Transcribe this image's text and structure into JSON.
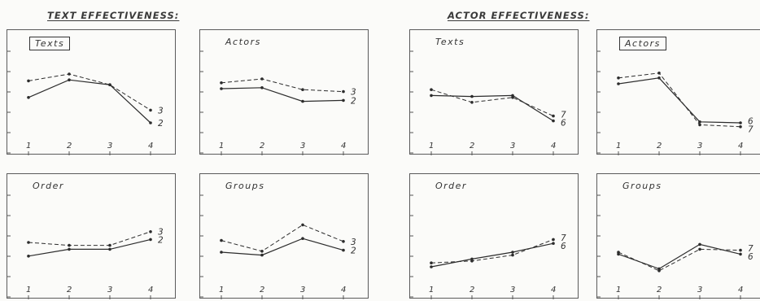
{
  "headings": {
    "left": "TEXT EFFECTIVENESS:",
    "right": "ACTOR EFFECTIVENESS:"
  },
  "chart_data": [
    {
      "type": "line",
      "title": "Texts",
      "title_boxed": true,
      "categories": [
        "1",
        "2",
        "3",
        "4"
      ],
      "ylim": [
        0,
        100
      ],
      "series": [
        {
          "name": "2",
          "style": "solid",
          "values": [
            46,
            64,
            59,
            20
          ]
        },
        {
          "name": "3",
          "style": "dashed",
          "values": [
            63,
            70,
            59,
            33
          ]
        }
      ]
    },
    {
      "type": "line",
      "title": "Actors",
      "title_boxed": false,
      "categories": [
        "1",
        "2",
        "3",
        "4"
      ],
      "ylim": [
        0,
        100
      ],
      "series": [
        {
          "name": "2",
          "style": "solid",
          "values": [
            55,
            56,
            42,
            43
          ]
        },
        {
          "name": "3",
          "style": "dashed",
          "values": [
            61,
            65,
            54,
            52
          ]
        }
      ]
    },
    {
      "type": "line",
      "title": "Texts",
      "title_boxed": false,
      "categories": [
        "1",
        "2",
        "3",
        "4"
      ],
      "ylim": [
        0,
        100
      ],
      "series": [
        {
          "name": "6",
          "style": "solid",
          "values": [
            48,
            47,
            48,
            22
          ]
        },
        {
          "name": "7",
          "style": "dashed",
          "values": [
            54,
            41,
            46,
            27
          ]
        }
      ]
    },
    {
      "type": "line",
      "title": "Actors",
      "title_boxed": true,
      "categories": [
        "1",
        "2",
        "3",
        "4"
      ],
      "ylim": [
        0,
        100
      ],
      "series": [
        {
          "name": "6",
          "style": "solid",
          "values": [
            60,
            66,
            21,
            20
          ]
        },
        {
          "name": "7",
          "style": "dashed",
          "values": [
            66,
            71,
            18,
            16
          ]
        }
      ]
    },
    {
      "type": "line",
      "title": "Order",
      "title_boxed": false,
      "categories": [
        "1",
        "2",
        "3",
        "4"
      ],
      "ylim": [
        0,
        100
      ],
      "series": [
        {
          "name": "2",
          "style": "solid",
          "values": [
            31,
            38,
            38,
            48
          ]
        },
        {
          "name": "3",
          "style": "dashed",
          "values": [
            45,
            42,
            42,
            56
          ]
        }
      ]
    },
    {
      "type": "line",
      "title": "Groups",
      "title_boxed": false,
      "categories": [
        "1",
        "2",
        "3",
        "4"
      ],
      "ylim": [
        0,
        100
      ],
      "series": [
        {
          "name": "2",
          "style": "solid",
          "values": [
            35,
            32,
            49,
            37
          ]
        },
        {
          "name": "3",
          "style": "dashed",
          "values": [
            47,
            36,
            63,
            46
          ]
        }
      ]
    },
    {
      "type": "line",
      "title": "Order",
      "title_boxed": false,
      "categories": [
        "1",
        "2",
        "3",
        "4"
      ],
      "ylim": [
        0,
        100
      ],
      "series": [
        {
          "name": "6",
          "style": "solid",
          "values": [
            20,
            28,
            35,
            44
          ]
        },
        {
          "name": "7",
          "style": "dashed",
          "values": [
            24,
            26,
            32,
            48
          ]
        }
      ]
    },
    {
      "type": "line",
      "title": "Groups",
      "title_boxed": false,
      "categories": [
        "1",
        "2",
        "3",
        "4"
      ],
      "ylim": [
        0,
        100
      ],
      "series": [
        {
          "name": "6",
          "style": "solid",
          "values": [
            33,
            18,
            43,
            33
          ]
        },
        {
          "name": "7",
          "style": "dashed",
          "values": [
            35,
            16,
            38,
            37
          ]
        }
      ]
    }
  ]
}
